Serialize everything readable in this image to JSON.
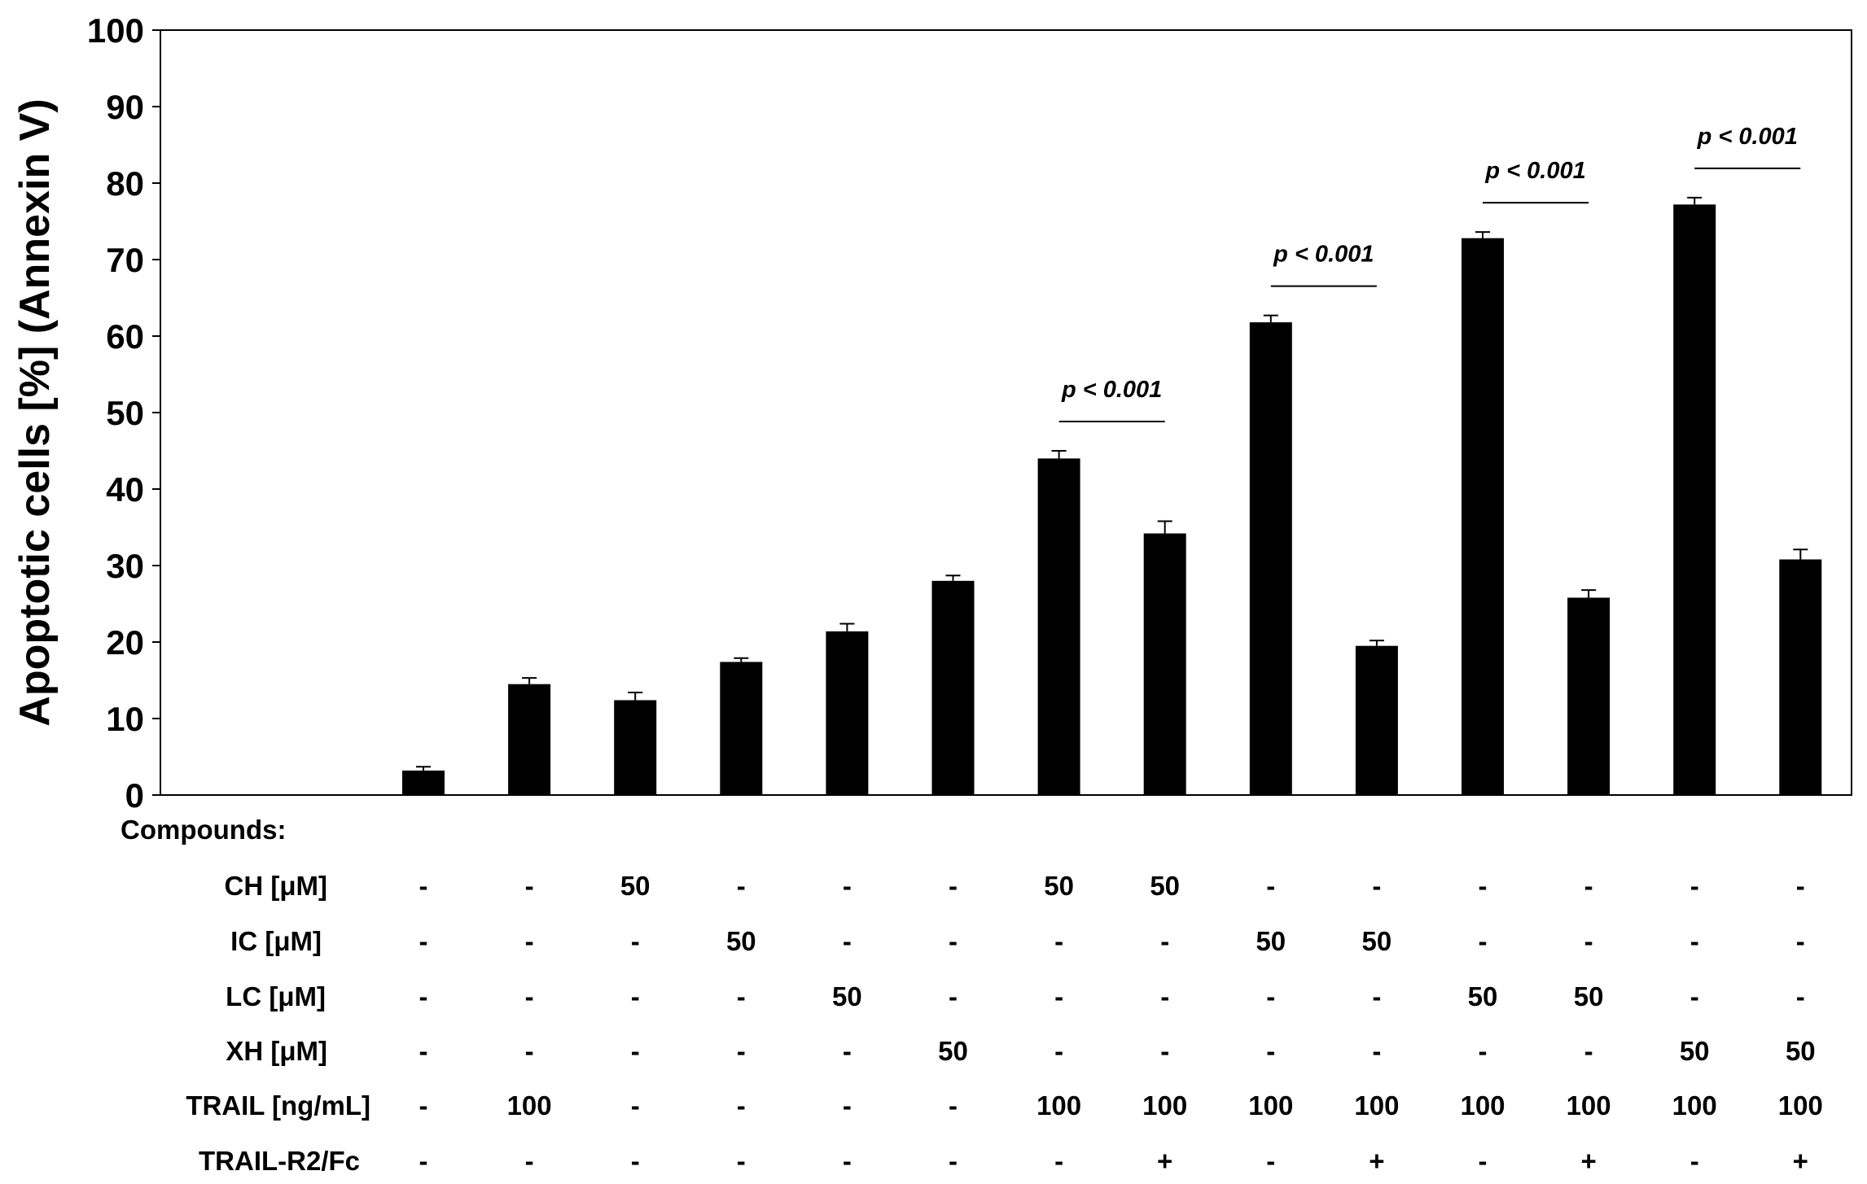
{
  "chart_data": {
    "type": "bar",
    "ylabel": "Apoptotic cells [%] (Annexin V)",
    "ylim": [
      0,
      100
    ],
    "yticks": [
      0,
      10,
      20,
      30,
      40,
      50,
      60,
      70,
      80,
      90,
      100
    ],
    "grid": false,
    "legend": "none",
    "bar_color": "#000000",
    "values": [
      3.2,
      14.5,
      12.4,
      17.4,
      21.4,
      28.0,
      44.0,
      34.2,
      61.8,
      19.5,
      72.8,
      25.8,
      77.2,
      30.8
    ],
    "errors": [
      0.5,
      0.8,
      1.0,
      0.5,
      1.0,
      0.7,
      1.0,
      1.6,
      0.9,
      0.7,
      0.8,
      1.0,
      0.9,
      1.3
    ],
    "annotations": [
      {
        "text": "p < 0.001",
        "from": 6,
        "to": 7
      },
      {
        "text": "p < 0.001",
        "from": 8,
        "to": 9
      },
      {
        "text": "p < 0.001",
        "from": 10,
        "to": 11
      },
      {
        "text": "p < 0.001",
        "from": 12,
        "to": 13
      }
    ],
    "table": {
      "header": "Compounds:",
      "rows": [
        {
          "label": "CH  [μM]",
          "cells": [
            "-",
            "-",
            "50",
            "-",
            "-",
            "-",
            "50",
            "50",
            "-",
            "-",
            "-",
            "-",
            "-",
            "-"
          ]
        },
        {
          "label": "IC  [μM]",
          "cells": [
            "-",
            "-",
            "-",
            "50",
            "-",
            "-",
            "-",
            "-",
            "50",
            "50",
            "-",
            "-",
            "-",
            "-"
          ]
        },
        {
          "label": "LC  [μM]",
          "cells": [
            "-",
            "-",
            "-",
            "-",
            "50",
            "-",
            "-",
            "-",
            "-",
            "-",
            "50",
            "50",
            "-",
            "-"
          ]
        },
        {
          "label": "XH  [μM]",
          "cells": [
            "-",
            "-",
            "-",
            "-",
            "-",
            "50",
            "-",
            "-",
            "-",
            "-",
            "-",
            "-",
            "50",
            "50"
          ]
        },
        {
          "label": "TRAIL [ng/mL]",
          "cells": [
            "-",
            "100",
            "-",
            "-",
            "-",
            "-",
            "100",
            "100",
            "100",
            "100",
            "100",
            "100",
            "100",
            "100"
          ]
        },
        {
          "label": "TRAIL-R2/Fc",
          "cells": [
            "-",
            "-",
            "-",
            "-",
            "-",
            "-",
            "-",
            "+",
            "-",
            "+",
            "-",
            "+",
            "-",
            "+"
          ]
        }
      ]
    }
  }
}
